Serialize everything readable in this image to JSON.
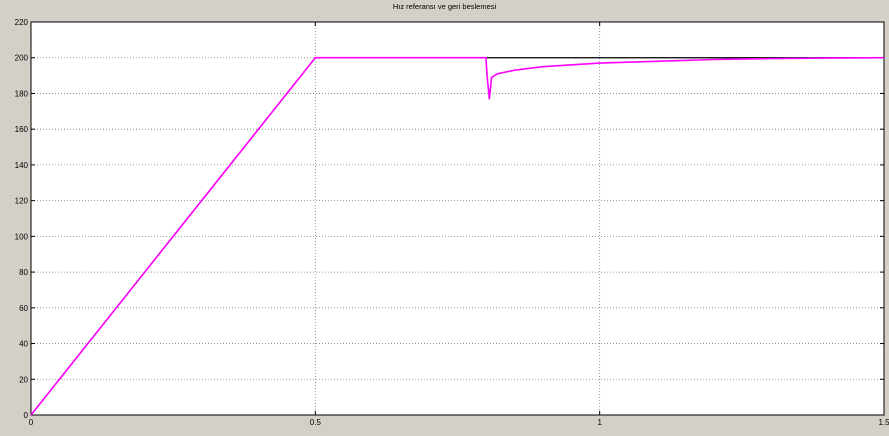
{
  "window": {
    "title": "Hız referansı ve geri beslemesi",
    "background_color": "#d4d0c8"
  },
  "chart_data": {
    "type": "line",
    "title": "Hız referansı ve geri beslemesi",
    "xlabel": "",
    "ylabel": "",
    "xlim": [
      0,
      1.5
    ],
    "ylim": [
      0,
      220
    ],
    "xticks": [
      0,
      0.5,
      1,
      1.5
    ],
    "xtick_labels": [
      "0",
      "0.5",
      "1",
      "1.5"
    ],
    "yticks": [
      0,
      20,
      40,
      60,
      80,
      100,
      120,
      140,
      160,
      180,
      200,
      220
    ],
    "ytick_labels": [
      "0",
      "20",
      "40",
      "60",
      "80",
      "100",
      "120",
      "140",
      "160",
      "180",
      "200",
      "220"
    ],
    "grid": true,
    "grid_style": "dotted",
    "plot_background": "#ffffff",
    "series": [
      {
        "color": "#000000",
        "x": [
          0,
          0.5,
          1.5
        ],
        "y": [
          0,
          200,
          200
        ]
      },
      {
        "color": "#ff00ff",
        "x": [
          0,
          0.5,
          0.7,
          0.8,
          0.802,
          0.806,
          0.81,
          0.82,
          0.85,
          0.9,
          1.0,
          1.1,
          1.2,
          1.3,
          1.4,
          1.5
        ],
        "y": [
          0,
          200,
          200,
          200,
          190,
          177,
          189,
          191,
          193,
          195,
          197,
          198,
          199,
          199.5,
          199.8,
          200
        ]
      }
    ]
  }
}
